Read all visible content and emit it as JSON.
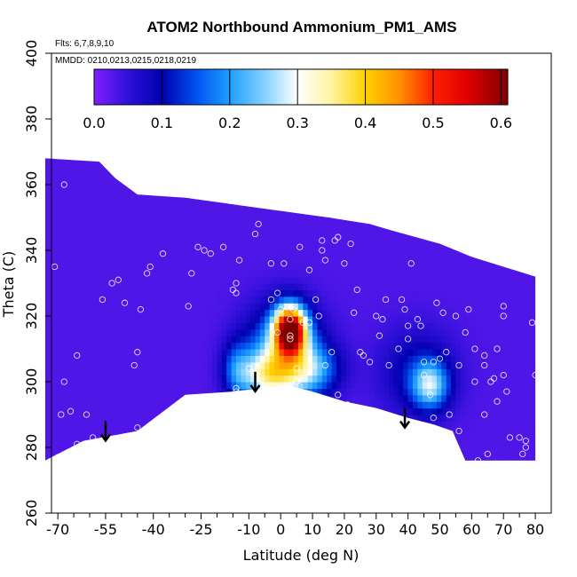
{
  "chart_data": {
    "type": "heatmap",
    "title": "ATOM2 Northbound Ammonium_PM1_AMS",
    "flights_note": "Flts: 6,7,8,9,10",
    "dates_note": "MMDD: 0210,0213,0215,0218,0219",
    "xlabel": "Latitude (deg N)",
    "ylabel": "Theta (C)",
    "xlim": [
      -72,
      85
    ],
    "ylim": [
      260,
      400
    ],
    "x_ticks": [
      -70,
      -55,
      -40,
      -25,
      -10,
      0,
      10,
      20,
      30,
      40,
      50,
      60,
      70,
      80
    ],
    "x_tick_labels": [
      "-70",
      "-55",
      "-40",
      "-25",
      "-10",
      "0",
      "10",
      "20",
      "30",
      "40",
      "50",
      "60",
      "70",
      "80"
    ],
    "x_minor_ticks": [
      -65,
      -60,
      -50,
      -45,
      -35,
      -30,
      -20,
      -15,
      -5,
      5,
      15,
      25,
      35,
      45,
      55,
      65,
      75
    ],
    "y_ticks": [
      260,
      280,
      300,
      320,
      340,
      360,
      380,
      400
    ],
    "y_tick_labels": [
      "260",
      "280",
      "300",
      "320",
      "340",
      "360",
      "380",
      "400"
    ],
    "colorbar": {
      "min": 0,
      "max": 0.61,
      "ticks": [
        0.0,
        0.1,
        0.2,
        0.3,
        0.4,
        0.5,
        0.6
      ],
      "tick_labels": [
        "0.0",
        "0.1",
        "0.2",
        "0.3",
        "0.4",
        "0.5",
        "0.6"
      ],
      "stops": [
        {
          "v": 0.0,
          "color": "#7f1fff"
        },
        {
          "v": 0.05,
          "color": "#3010d8"
        },
        {
          "v": 0.1,
          "color": "#0000b0"
        },
        {
          "v": 0.15,
          "color": "#0050f0"
        },
        {
          "v": 0.2,
          "color": "#1ea0ff"
        },
        {
          "v": 0.25,
          "color": "#80d0ff"
        },
        {
          "v": 0.3,
          "color": "#ffffff"
        },
        {
          "v": 0.35,
          "color": "#fff5a0"
        },
        {
          "v": 0.4,
          "color": "#ffd000"
        },
        {
          "v": 0.45,
          "color": "#ff9000"
        },
        {
          "v": 0.5,
          "color": "#ff2000"
        },
        {
          "v": 0.55,
          "color": "#e00000"
        },
        {
          "v": 0.61,
          "color": "#800000"
        }
      ]
    },
    "coverage_top": [
      [
        -74,
        368
      ],
      [
        -57,
        367
      ],
      [
        -52,
        362
      ],
      [
        -45,
        357
      ],
      [
        -30,
        356
      ],
      [
        -15,
        354
      ],
      [
        0,
        352
      ],
      [
        15,
        350
      ],
      [
        28,
        348
      ],
      [
        35,
        346
      ],
      [
        50,
        342
      ],
      [
        60,
        338
      ],
      [
        70,
        335
      ],
      [
        80,
        332
      ]
    ],
    "coverage_bottom": [
      [
        -74,
        276
      ],
      [
        -62,
        282
      ],
      [
        -45,
        285
      ],
      [
        -30,
        296
      ],
      [
        -15,
        297
      ],
      [
        2,
        299
      ],
      [
        10,
        297
      ],
      [
        20,
        294
      ],
      [
        30,
        292
      ],
      [
        40,
        289
      ],
      [
        48,
        287
      ],
      [
        54,
        285
      ],
      [
        58,
        276
      ],
      [
        80,
        276
      ]
    ],
    "background_value": 0.03,
    "blobs": [
      {
        "lat": 3,
        "theta": 316,
        "value": 0.55,
        "sx": 3.5,
        "sy": 5
      },
      {
        "lat": 1,
        "theta": 307,
        "value": 0.24,
        "sx": 8,
        "sy": 10
      },
      {
        "lat": -5,
        "theta": 302,
        "value": 0.17,
        "sx": 6,
        "sy": 5
      },
      {
        "lat": -14,
        "theta": 304,
        "value": 0.1,
        "sx": 3,
        "sy": 6
      },
      {
        "lat": 10,
        "theta": 304,
        "value": 0.13,
        "sx": 6,
        "sy": 5
      },
      {
        "lat": 47,
        "theta": 299,
        "value": 0.2,
        "sx": 4,
        "sy": 5
      },
      {
        "lat": 43,
        "theta": 303,
        "value": 0.08,
        "sx": 8,
        "sy": 9
      }
    ],
    "observation_points": [
      [
        -71,
        335
      ],
      [
        -70,
        277
      ],
      [
        -69,
        290
      ],
      [
        -68,
        300
      ],
      [
        -68,
        360
      ],
      [
        -66,
        291
      ],
      [
        -64,
        308
      ],
      [
        -64,
        281
      ],
      [
        -61,
        290
      ],
      [
        -59,
        283
      ],
      [
        -56,
        325
      ],
      [
        -53,
        330
      ],
      [
        -51,
        331
      ],
      [
        -49,
        324
      ],
      [
        -46,
        305
      ],
      [
        -45,
        309
      ],
      [
        -45,
        286
      ],
      [
        -44,
        322
      ],
      [
        -42,
        333
      ],
      [
        -41,
        335
      ],
      [
        -37,
        339
      ],
      [
        -29,
        323
      ],
      [
        -28,
        333
      ],
      [
        -26,
        341
      ],
      [
        -24,
        340
      ],
      [
        -22,
        339
      ],
      [
        -18,
        341
      ],
      [
        -15,
        328
      ],
      [
        -14,
        330
      ],
      [
        -14,
        327
      ],
      [
        -14,
        298
      ],
      [
        -14,
        297
      ],
      [
        -13,
        337
      ],
      [
        -10,
        304
      ],
      [
        -8,
        345
      ],
      [
        -7,
        348
      ],
      [
        -7,
        297
      ],
      [
        -3,
        336
      ],
      [
        -3,
        325
      ],
      [
        -1,
        327
      ],
      [
        -1,
        315
      ],
      [
        0,
        322
      ],
      [
        1,
        336
      ],
      [
        3,
        319
      ],
      [
        3,
        314
      ],
      [
        3,
        313
      ],
      [
        4,
        322
      ],
      [
        5,
        304
      ],
      [
        5,
        300
      ],
      [
        5,
        300
      ],
      [
        6,
        341
      ],
      [
        7,
        318
      ],
      [
        9,
        334
      ],
      [
        9,
        318
      ],
      [
        11,
        325
      ],
      [
        12,
        320
      ],
      [
        13,
        343
      ],
      [
        13,
        340
      ],
      [
        14,
        337
      ],
      [
        14,
        305
      ],
      [
        16,
        309
      ],
      [
        17,
        343
      ],
      [
        18,
        344
      ],
      [
        18,
        296
      ],
      [
        20,
        336
      ],
      [
        21,
        293
      ],
      [
        22,
        342
      ],
      [
        23,
        321
      ],
      [
        24,
        328
      ],
      [
        25,
        309
      ],
      [
        26,
        308
      ],
      [
        28,
        306
      ],
      [
        30,
        320
      ],
      [
        31,
        314
      ],
      [
        32,
        319
      ],
      [
        33,
        325
      ],
      [
        34,
        305
      ],
      [
        37,
        310
      ],
      [
        38,
        325
      ],
      [
        39,
        322
      ],
      [
        40,
        317
      ],
      [
        40,
        313
      ],
      [
        41,
        336
      ],
      [
        43,
        319
      ],
      [
        44,
        317
      ],
      [
        45,
        306
      ],
      [
        45,
        302
      ],
      [
        47,
        296
      ],
      [
        48,
        289
      ],
      [
        48,
        306
      ],
      [
        49,
        324
      ],
      [
        50,
        307
      ],
      [
        51,
        321
      ],
      [
        52,
        309
      ],
      [
        53,
        290
      ],
      [
        55,
        320
      ],
      [
        56,
        285
      ],
      [
        56,
        305
      ],
      [
        58,
        315
      ],
      [
        59,
        322
      ],
      [
        61,
        300
      ],
      [
        61,
        310
      ],
      [
        62,
        276
      ],
      [
        64,
        290
      ],
      [
        64,
        305
      ],
      [
        64,
        308
      ],
      [
        65,
        278
      ],
      [
        66,
        300
      ],
      [
        67,
        301
      ],
      [
        68,
        294
      ],
      [
        68,
        310
      ],
      [
        70,
        302
      ],
      [
        70,
        320
      ],
      [
        70,
        323
      ],
      [
        71,
        297
      ],
      [
        72,
        283
      ],
      [
        75,
        283
      ],
      [
        76,
        278
      ],
      [
        77,
        280
      ],
      [
        77,
        282
      ],
      [
        79,
        318
      ],
      [
        80,
        302
      ],
      [
        82,
        322
      ],
      [
        83,
        296
      ],
      [
        84,
        276
      ]
    ],
    "arrows": [
      [
        -55,
        288
      ],
      [
        -8,
        303
      ],
      [
        39,
        292
      ]
    ]
  }
}
